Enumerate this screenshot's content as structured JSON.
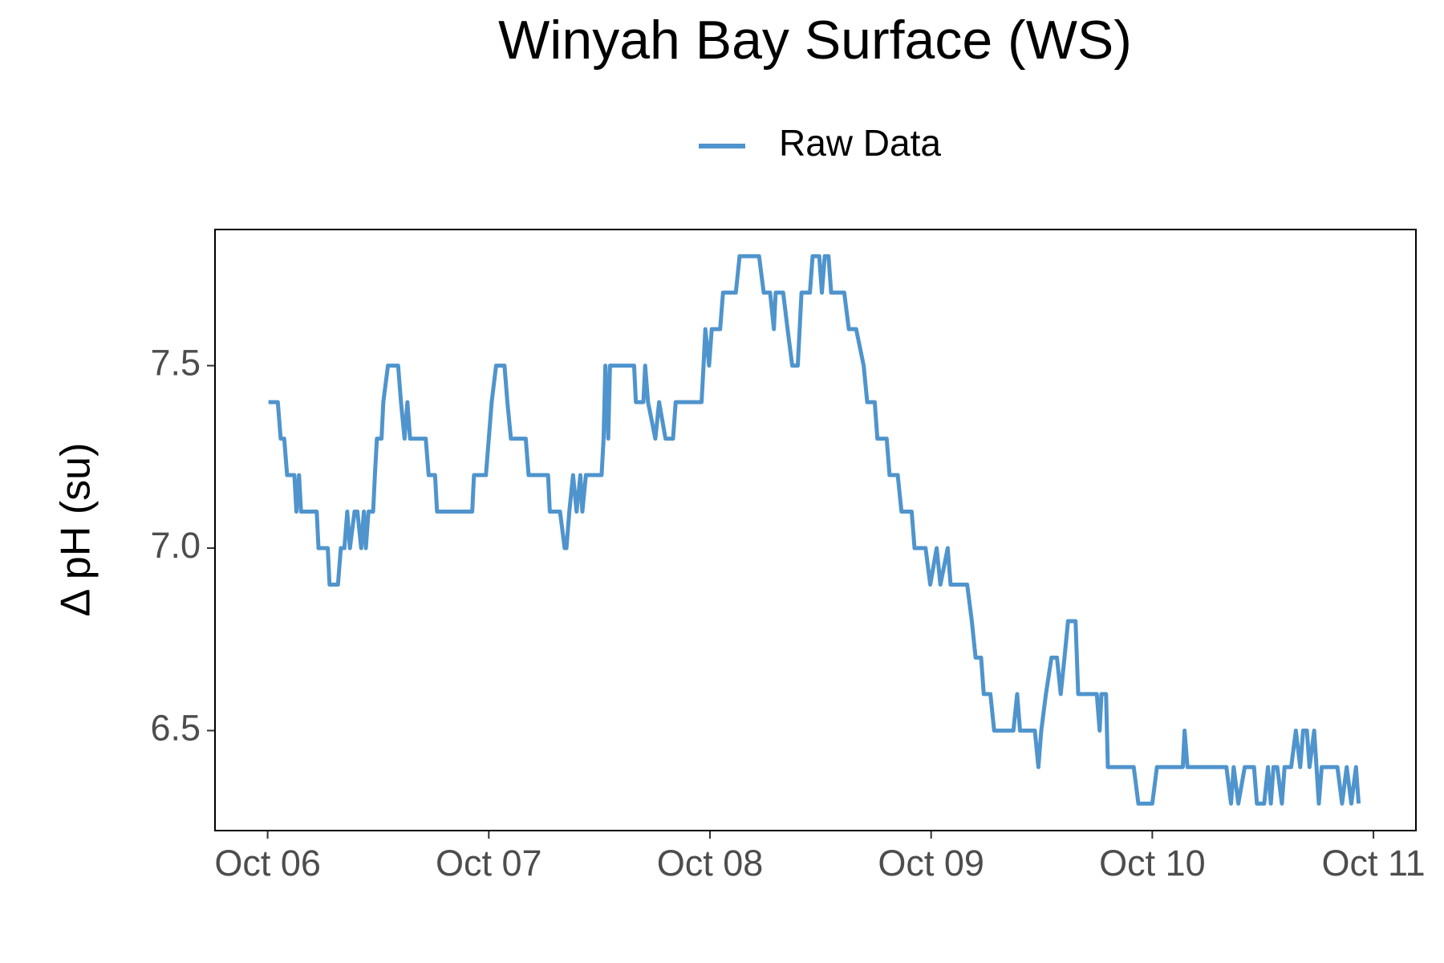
{
  "chart_data": {
    "type": "line",
    "title": "Winyah Bay Surface (WS)",
    "y_label": "Δ pH (su)",
    "xlim": [
      -0.238,
      5.192
    ],
    "ylim": [
      6.226,
      7.873
    ],
    "xticks": [
      {
        "value": 0,
        "label": "Oct 06"
      },
      {
        "value": 1,
        "label": "Oct 07"
      },
      {
        "value": 2,
        "label": "Oct 08"
      },
      {
        "value": 3,
        "label": "Oct 09"
      },
      {
        "value": 4,
        "label": "Oct 10"
      },
      {
        "value": 5,
        "label": "Oct 11"
      }
    ],
    "yticks": [
      6.5,
      {
        "value": 7,
        "label": "7.0"
      },
      7.5
    ],
    "grid": false,
    "legend_position": "top",
    "series": [
      {
        "name": "Raw Data",
        "color": "#4f94cd",
        "x": [
          0.004,
          0.046,
          0.059,
          0.075,
          0.088,
          0.121,
          0.13,
          0.142,
          0.151,
          0.222,
          0.23,
          0.272,
          0.28,
          0.318,
          0.331,
          0.347,
          0.36,
          0.372,
          0.393,
          0.406,
          0.423,
          0.435,
          0.444,
          0.456,
          0.477,
          0.485,
          0.494,
          0.515,
          0.523,
          0.544,
          0.59,
          0.603,
          0.619,
          0.632,
          0.644,
          0.715,
          0.728,
          0.757,
          0.766,
          0.925,
          0.933,
          0.987,
          1.0,
          1.013,
          1.033,
          1.071,
          1.084,
          1.1,
          1.167,
          1.18,
          1.268,
          1.276,
          1.322,
          1.343,
          1.351,
          1.364,
          1.381,
          1.397,
          1.414,
          1.423,
          1.439,
          1.51,
          1.519,
          1.527,
          1.54,
          1.548,
          1.657,
          1.665,
          1.699,
          1.707,
          1.72,
          1.753,
          1.77,
          1.799,
          1.833,
          1.845,
          1.962,
          1.971,
          1.979,
          1.996,
          2.008,
          2.046,
          2.059,
          2.117,
          2.134,
          2.222,
          2.243,
          2.272,
          2.289,
          2.297,
          2.331,
          2.351,
          2.372,
          2.397,
          2.414,
          2.452,
          2.464,
          2.494,
          2.506,
          2.519,
          2.536,
          2.548,
          2.607,
          2.628,
          2.661,
          2.695,
          2.711,
          2.745,
          2.757,
          2.799,
          2.812,
          2.849,
          2.866,
          2.912,
          2.925,
          2.975,
          2.996,
          3.025,
          3.042,
          3.075,
          3.088,
          3.163,
          3.184,
          3.201,
          3.226,
          3.238,
          3.268,
          3.285,
          3.372,
          3.389,
          3.402,
          3.469,
          3.485,
          3.498,
          3.519,
          3.544,
          3.569,
          3.586,
          3.603,
          3.619,
          3.653,
          3.665,
          3.749,
          3.762,
          3.77,
          3.791,
          3.799,
          3.916,
          3.937,
          4.0,
          4.021,
          4.138,
          4.146,
          4.159,
          4.335,
          4.356,
          4.368,
          4.389,
          4.418,
          4.46,
          4.473,
          4.506,
          4.523,
          4.536,
          4.548,
          4.565,
          4.586,
          4.598,
          4.628,
          4.649,
          4.669,
          4.682,
          4.699,
          4.711,
          4.732,
          4.753,
          4.766,
          4.837,
          4.858,
          4.879,
          4.9,
          4.921,
          4.933
        ],
        "values": [
          7.4,
          7.4,
          7.3,
          7.3,
          7.2,
          7.2,
          7.1,
          7.2,
          7.1,
          7.1,
          7.0,
          7.0,
          6.9,
          6.9,
          7.0,
          7.0,
          7.1,
          7.0,
          7.1,
          7.1,
          7.0,
          7.1,
          7.0,
          7.1,
          7.1,
          7.2,
          7.3,
          7.3,
          7.4,
          7.5,
          7.5,
          7.4,
          7.3,
          7.4,
          7.3,
          7.3,
          7.2,
          7.2,
          7.1,
          7.1,
          7.2,
          7.2,
          7.3,
          7.4,
          7.5,
          7.5,
          7.4,
          7.3,
          7.3,
          7.2,
          7.2,
          7.1,
          7.1,
          7.0,
          7.0,
          7.1,
          7.2,
          7.1,
          7.2,
          7.1,
          7.2,
          7.2,
          7.3,
          7.5,
          7.3,
          7.5,
          7.5,
          7.4,
          7.4,
          7.5,
          7.4,
          7.3,
          7.4,
          7.3,
          7.3,
          7.4,
          7.4,
          7.5,
          7.6,
          7.5,
          7.6,
          7.6,
          7.7,
          7.7,
          7.8,
          7.8,
          7.7,
          7.7,
          7.6,
          7.7,
          7.7,
          7.6,
          7.5,
          7.5,
          7.7,
          7.7,
          7.8,
          7.8,
          7.7,
          7.8,
          7.8,
          7.7,
          7.7,
          7.6,
          7.6,
          7.5,
          7.4,
          7.4,
          7.3,
          7.3,
          7.2,
          7.2,
          7.1,
          7.1,
          7.0,
          7.0,
          6.9,
          7.0,
          6.9,
          7.0,
          6.9,
          6.9,
          6.8,
          6.7,
          6.7,
          6.6,
          6.6,
          6.5,
          6.5,
          6.6,
          6.5,
          6.5,
          6.4,
          6.5,
          6.6,
          6.7,
          6.7,
          6.6,
          6.7,
          6.8,
          6.8,
          6.6,
          6.6,
          6.5,
          6.6,
          6.6,
          6.4,
          6.4,
          6.3,
          6.3,
          6.4,
          6.4,
          6.5,
          6.4,
          6.4,
          6.3,
          6.4,
          6.3,
          6.4,
          6.4,
          6.3,
          6.3,
          6.4,
          6.3,
          6.4,
          6.4,
          6.3,
          6.4,
          6.4,
          6.5,
          6.4,
          6.5,
          6.5,
          6.4,
          6.5,
          6.3,
          6.4,
          6.4,
          6.3,
          6.4,
          6.3,
          6.4,
          6.3
        ]
      }
    ]
  }
}
